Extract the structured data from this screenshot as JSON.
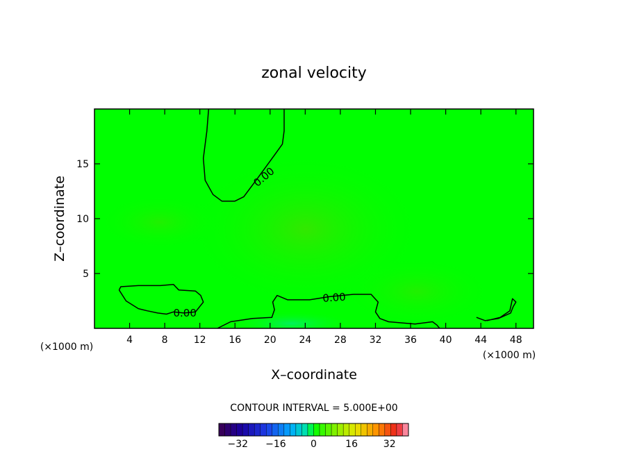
{
  "chart_data": {
    "type": "contour",
    "title": "zonal velocity",
    "xlabel": "X–coordinate",
    "ylabel": "Z–coordinate",
    "x_unit_left": "(×1000 m)",
    "x_unit_right": "(×1000 m)",
    "xlim": [
      0,
      50
    ],
    "ylim": [
      0,
      20
    ],
    "x_ticks": [
      4,
      8,
      12,
      16,
      20,
      24,
      28,
      32,
      36,
      40,
      44,
      48
    ],
    "y_ticks": [
      5,
      10,
      15
    ],
    "contour_label": "0.00",
    "contour_interval_label": "CONTOUR INTERVAL = 5.000E+00",
    "colorbar": {
      "min": -40,
      "max": 40,
      "step": 2.5,
      "ticks": [
        -32,
        -16,
        0,
        16,
        32
      ]
    },
    "background_color": "#00ff00",
    "zero_contours": [
      {
        "name": "upper",
        "points": [
          [
            13,
            20
          ],
          [
            12.8,
            18
          ],
          [
            12.4,
            15.5
          ],
          [
            12.6,
            13.5
          ],
          [
            13.5,
            12.2
          ],
          [
            14.5,
            11.6
          ],
          [
            16,
            11.6
          ],
          [
            17,
            12
          ],
          [
            18.5,
            13.6
          ],
          [
            20.5,
            15.8
          ],
          [
            21.4,
            16.8
          ],
          [
            21.6,
            18
          ],
          [
            21.6,
            20
          ]
        ]
      },
      {
        "name": "lower-left",
        "points": [
          [
            2.8,
            3.5
          ],
          [
            3,
            3.8
          ],
          [
            5,
            3.9
          ],
          [
            7.5,
            3.9
          ],
          [
            9,
            4
          ],
          [
            9.6,
            3.5
          ],
          [
            11.5,
            3.4
          ],
          [
            12.1,
            3
          ],
          [
            12.4,
            2.4
          ],
          [
            11.5,
            1.5
          ],
          [
            10.2,
            1.4
          ],
          [
            9,
            1.5
          ],
          [
            8.2,
            1.3
          ],
          [
            7.2,
            1.4
          ],
          [
            6,
            1.6
          ],
          [
            5,
            1.8
          ],
          [
            3.6,
            2.5
          ],
          [
            2.8,
            3.5
          ]
        ]
      },
      {
        "name": "lower-middle",
        "points": [
          [
            14,
            0
          ],
          [
            15.5,
            0.6
          ],
          [
            18,
            0.9
          ],
          [
            20.2,
            1
          ],
          [
            20.5,
            1.7
          ],
          [
            20.3,
            2.4
          ],
          [
            20.8,
            3
          ],
          [
            22,
            2.6
          ],
          [
            24.5,
            2.6
          ],
          [
            26.8,
            2.9
          ],
          [
            29.5,
            3.1
          ],
          [
            31.5,
            3.1
          ],
          [
            32.3,
            2.4
          ],
          [
            32,
            1.5
          ],
          [
            32.5,
            0.9
          ],
          [
            33.5,
            0.6
          ],
          [
            36.5,
            0.4
          ],
          [
            38.5,
            0.6
          ],
          [
            39,
            0.3
          ],
          [
            39.3,
            0
          ]
        ]
      },
      {
        "name": "right-small",
        "points": [
          [
            43.5,
            1
          ],
          [
            44.5,
            0.7
          ],
          [
            46,
            0.9
          ],
          [
            47.4,
            1.4
          ],
          [
            47.7,
            2
          ],
          [
            48,
            2.4
          ],
          [
            47.6,
            2.7
          ],
          [
            47.3,
            1.6
          ],
          [
            46.2,
            1
          ],
          [
            44.7,
            0.7
          ]
        ]
      }
    ]
  }
}
